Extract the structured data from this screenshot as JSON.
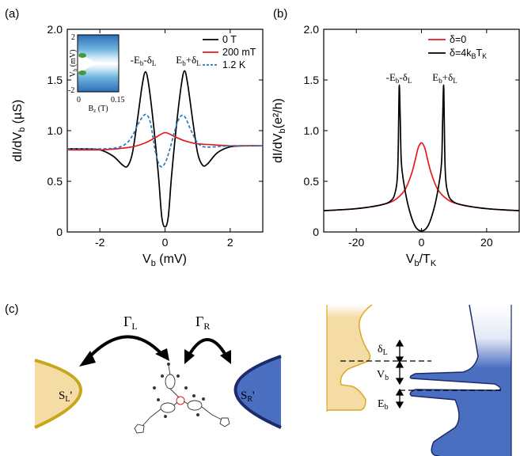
{
  "panels": {
    "a": {
      "label": "(a)",
      "ylabel_main": "dI/dV",
      "ylabel_sub": "b",
      "ylabel_unit": " (µS)",
      "xlabel_main": "V",
      "xlabel_sub": "b",
      "xlabel_unit": " (mV)",
      "annot_left": "-Eb-δL",
      "annot_right": "Eb+δL",
      "inset": {
        "ylabel": "Vb (mV)",
        "xlabel": "Bz (T)",
        "yticks": [
          "2",
          "-2"
        ],
        "xticks": [
          "0",
          "0.15"
        ]
      }
    },
    "b": {
      "label": "(b)",
      "ylabel_main": "dI/dV",
      "ylabel_sub": "b",
      "ylabel_unit": "(e²/h)",
      "xlabel": "Vb/TK",
      "annot_left": "-Eb-δL",
      "annot_right": "Eb+δL"
    },
    "c": {
      "label": "(c)",
      "gamma_l": "ΓL",
      "gamma_r": "ΓR",
      "sl": "SL'",
      "sr": "SR'",
      "delta_l": "δL",
      "vb": "Vb",
      "eb": "Eb"
    }
  },
  "chart_data": [
    {
      "type": "line",
      "panel": "a",
      "xlim": [
        -3,
        3
      ],
      "ylim": [
        0,
        2.0
      ],
      "xticks": [
        -2,
        0,
        2
      ],
      "yticks": [
        0,
        0.5,
        1.0,
        1.5,
        2.0
      ],
      "ytick_labels": [
        "0",
        "0.5",
        "1.0",
        "1.5",
        "2.0"
      ],
      "legend": "top-right",
      "series": [
        {
          "name": "0 T",
          "color": "#000000",
          "style": "solid",
          "x": [
            -3,
            -2.5,
            -2,
            -1.6,
            -1.3,
            -1.15,
            -1.0,
            -0.85,
            -0.7,
            -0.6,
            -0.5,
            -0.35,
            -0.2,
            -0.1,
            0,
            0.1,
            0.2,
            0.35,
            0.5,
            0.6,
            0.7,
            0.85,
            1.0,
            1.15,
            1.3,
            1.6,
            2,
            2.5,
            3
          ],
          "y": [
            0.82,
            0.82,
            0.81,
            0.75,
            0.66,
            0.65,
            0.78,
            1.1,
            1.45,
            1.58,
            1.45,
            1.05,
            0.55,
            0.15,
            0.05,
            0.15,
            0.55,
            1.05,
            1.45,
            1.59,
            1.45,
            1.1,
            0.78,
            0.66,
            0.67,
            0.78,
            0.84,
            0.85,
            0.85
          ]
        },
        {
          "name": "200 mT",
          "color": "#e41a1c",
          "style": "solid",
          "x": [
            -3,
            -2,
            -1.5,
            -1.0,
            -0.6,
            -0.3,
            0,
            0.3,
            0.6,
            1.0,
            1.5,
            2,
            3
          ],
          "y": [
            0.81,
            0.81,
            0.82,
            0.84,
            0.88,
            0.93,
            0.98,
            0.94,
            0.9,
            0.87,
            0.86,
            0.85,
            0.85
          ]
        },
        {
          "name": "1.2 K",
          "color": "#2b7bb9",
          "style": "dashed",
          "x": [
            -3,
            -2,
            -1.5,
            -1.2,
            -1.0,
            -0.8,
            -0.6,
            -0.45,
            -0.3,
            -0.15,
            0,
            0.15,
            0.3,
            0.45,
            0.6,
            0.8,
            1.0,
            1.2,
            1.5,
            2,
            3
          ],
          "y": [
            0.82,
            0.82,
            0.83,
            0.87,
            0.95,
            1.08,
            1.16,
            1.08,
            0.8,
            0.65,
            0.68,
            0.82,
            1.0,
            1.13,
            1.14,
            1.0,
            0.88,
            0.84,
            0.84,
            0.85,
            0.85
          ]
        }
      ]
    },
    {
      "type": "line",
      "panel": "b",
      "xlim": [
        -30,
        30
      ],
      "ylim": [
        0,
        2.0
      ],
      "xticks": [
        -20,
        0,
        20
      ],
      "yticks": [
        0,
        0.5,
        1.0,
        1.5,
        2.0
      ],
      "ytick_labels": [
        "0",
        "0.5",
        "1.0",
        "1.5",
        "2.0"
      ],
      "legend": "top-right",
      "series": [
        {
          "name": "δ=0",
          "color": "#e41a1c",
          "style": "solid",
          "x": [
            -30,
            -20,
            -12,
            -8,
            -5,
            -3,
            -2,
            -1,
            0,
            1,
            2,
            3,
            5,
            8,
            12,
            20,
            30
          ],
          "y": [
            0.21,
            0.23,
            0.27,
            0.32,
            0.42,
            0.58,
            0.7,
            0.83,
            0.88,
            0.83,
            0.7,
            0.58,
            0.42,
            0.32,
            0.27,
            0.23,
            0.21
          ]
        },
        {
          "name": "δ=4kBTK",
          "color": "#000000",
          "style": "solid",
          "x": [
            -30,
            -20,
            -12,
            -9,
            -8,
            -7.5,
            -7.2,
            -7.0,
            -6.8,
            -6.5,
            -6.2,
            -5.5,
            -4,
            -2,
            0,
            2,
            4,
            5.5,
            6.2,
            6.5,
            6.8,
            7.0,
            7.2,
            7.5,
            8,
            9,
            12,
            20,
            30
          ],
          "y": [
            0.21,
            0.23,
            0.27,
            0.32,
            0.4,
            0.5,
            0.7,
            1.1,
            1.45,
            1.1,
            0.7,
            0.5,
            0.25,
            0.06,
            0.01,
            0.06,
            0.25,
            0.5,
            0.7,
            1.1,
            1.45,
            1.1,
            0.7,
            0.5,
            0.4,
            0.32,
            0.27,
            0.23,
            0.21
          ]
        }
      ]
    }
  ]
}
